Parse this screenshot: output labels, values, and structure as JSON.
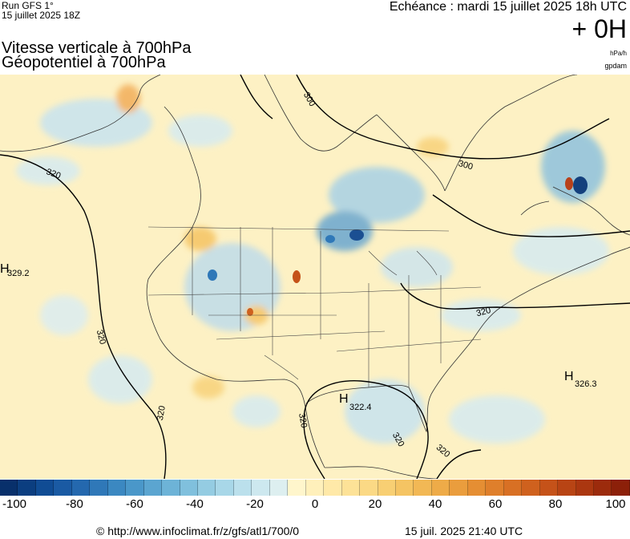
{
  "header": {
    "run_line": "Run GFS 1°",
    "run_date": "15 juillet 2025 18Z",
    "echeance": "Echéance : mardi 15 juillet 2025 18h UTC",
    "lead_time": "+ 0H",
    "title_line1": "Vitesse verticale à 700hPa",
    "title_line2": "Géopotentiel à 700hPa",
    "unit_1": "hPa/h",
    "unit_2": "gpdam"
  },
  "map": {
    "contour_labels": [
      "300",
      "300",
      "320",
      "320",
      "320",
      "320",
      "320",
      "320",
      "320"
    ],
    "pressure_centers": [
      {
        "letter": "H",
        "value": "329.2"
      },
      {
        "letter": "H",
        "value": "322.4"
      },
      {
        "letter": "H",
        "value": "326.3"
      }
    ],
    "colors": {
      "ocean": "#fdf1c4",
      "land": "#fbe2a8",
      "ascent_light": "#c7e3f0",
      "ascent_strong": "#1b4f92",
      "subsidence": "#f2ae5a",
      "subsidence_strong": "#b8411a"
    }
  },
  "colorbar": {
    "ticks": [
      "-100",
      "-80",
      "-60",
      "-40",
      "-20",
      "0",
      "20",
      "40",
      "60",
      "80",
      "100"
    ],
    "colors": [
      "#08306b",
      "#0b3e80",
      "#104c94",
      "#1a5aa3",
      "#2468ae",
      "#2f78b8",
      "#3b88c1",
      "#4a97c9",
      "#5ba5d0",
      "#6db3d7",
      "#80c0dd",
      "#94cce2",
      "#a8d7e8",
      "#bbe0ec",
      "#cde8ef",
      "#ddeff0",
      "#fff6cc",
      "#fff0bb",
      "#ffe9a8",
      "#fde297",
      "#fbd985",
      "#f8cf73",
      "#f5c463",
      "#f2b855",
      "#eeab48",
      "#ea9d3d",
      "#e58e33",
      "#df7f2b",
      "#d87024",
      "#cf611e",
      "#c55219",
      "#b84414",
      "#ab3710",
      "#9c2b0c",
      "#8c2009"
    ]
  },
  "footer": {
    "url": "© http://www.infoclimat.fr/z/gfs/atl1/700/0",
    "time": "15 juil. 2025 21:40 UTC"
  }
}
